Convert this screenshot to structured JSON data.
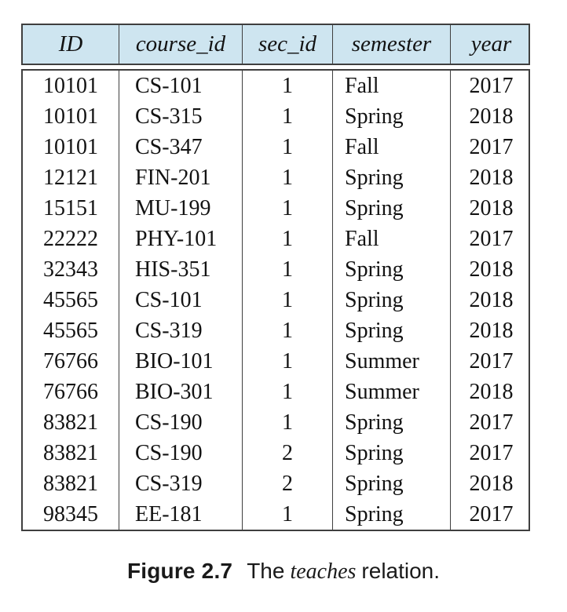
{
  "figure": {
    "caption_label": "Figure 2.7",
    "caption_pre": "The",
    "caption_relation": "teaches",
    "caption_post": "relation."
  },
  "table": {
    "name": "teaches",
    "columns": [
      "ID",
      "course_id",
      "sec_id",
      "semester",
      "year"
    ],
    "rows": [
      [
        "10101",
        "CS-101",
        "1",
        "Fall",
        "2017"
      ],
      [
        "10101",
        "CS-315",
        "1",
        "Spring",
        "2018"
      ],
      [
        "10101",
        "CS-347",
        "1",
        "Fall",
        "2017"
      ],
      [
        "12121",
        "FIN-201",
        "1",
        "Spring",
        "2018"
      ],
      [
        "15151",
        "MU-199",
        "1",
        "Spring",
        "2018"
      ],
      [
        "22222",
        "PHY-101",
        "1",
        "Fall",
        "2017"
      ],
      [
        "32343",
        "HIS-351",
        "1",
        "Spring",
        "2018"
      ],
      [
        "45565",
        "CS-101",
        "1",
        "Spring",
        "2018"
      ],
      [
        "45565",
        "CS-319",
        "1",
        "Spring",
        "2018"
      ],
      [
        "76766",
        "BIO-101",
        "1",
        "Summer",
        "2017"
      ],
      [
        "76766",
        "BIO-301",
        "1",
        "Summer",
        "2018"
      ],
      [
        "83821",
        "CS-190",
        "1",
        "Spring",
        "2017"
      ],
      [
        "83821",
        "CS-190",
        "2",
        "Spring",
        "2017"
      ],
      [
        "83821",
        "CS-319",
        "2",
        "Spring",
        "2018"
      ],
      [
        "98345",
        "EE-181",
        "1",
        "Spring",
        "2017"
      ]
    ]
  },
  "colors": {
    "header_bg": "#cee5f0",
    "border": "#3f3f3f",
    "text": "#131313"
  }
}
